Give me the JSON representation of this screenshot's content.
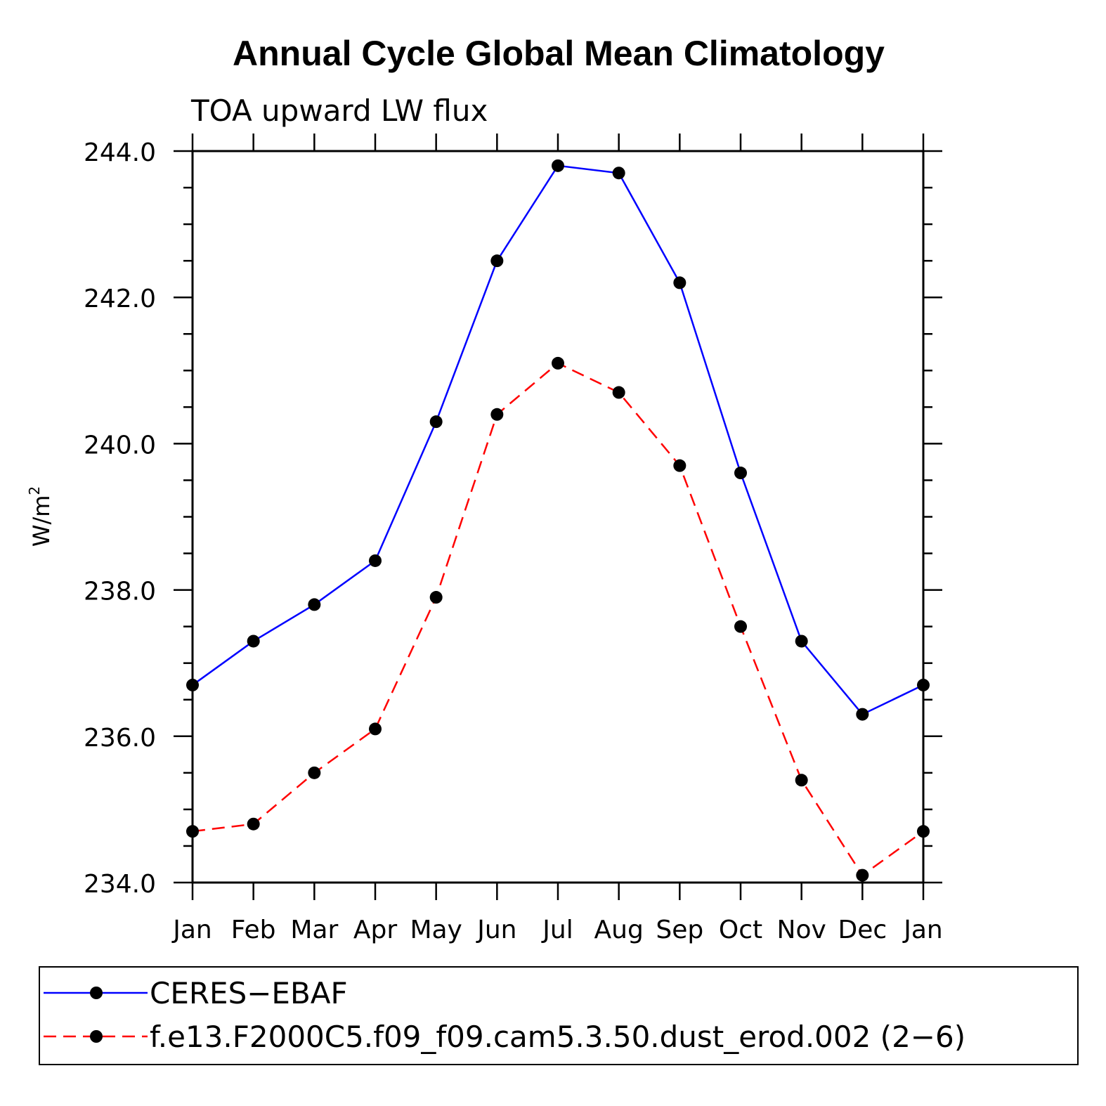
{
  "chart_data": {
    "type": "line",
    "title": "Annual Cycle Global Mean Climatology",
    "subtitle": "TOA upward LW flux",
    "ylabel_base": "W/m",
    "ylabel_sup": "2",
    "categories": [
      "Jan",
      "Feb",
      "Mar",
      "Apr",
      "May",
      "Jun",
      "Jul",
      "Aug",
      "Sep",
      "Oct",
      "Nov",
      "Dec",
      "Jan"
    ],
    "ylim": [
      234.0,
      244.0
    ],
    "yticks": [
      234.0,
      236.0,
      238.0,
      240.0,
      242.0,
      244.0
    ],
    "ytick_labels": [
      "234.0",
      "236.0",
      "238.0",
      "240.0",
      "242.0",
      "244.0"
    ],
    "series": [
      {
        "name": "CERES−EBAF",
        "color": "#0000ff",
        "line_style": "solid",
        "values": [
          236.7,
          237.3,
          237.8,
          238.4,
          240.3,
          242.5,
          243.8,
          243.7,
          242.2,
          239.6,
          237.3,
          236.3,
          236.7
        ]
      },
      {
        "name": "f.e13.F2000C5.f09_f09.cam5.3.50.dust_erod.002 (2−6)",
        "color": "#ff0000",
        "line_style": "dashed",
        "values": [
          234.7,
          234.8,
          235.5,
          236.1,
          237.9,
          240.4,
          241.1,
          240.7,
          239.7,
          237.5,
          235.4,
          234.1,
          234.7
        ]
      }
    ],
    "marker_color": "#000000",
    "grid": false,
    "legend_position": "bottom"
  }
}
